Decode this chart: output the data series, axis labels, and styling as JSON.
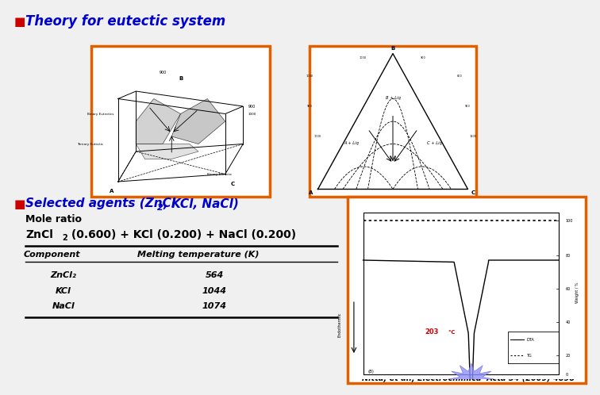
{
  "background_color": "#f0f0f0",
  "title1": "Theory for eutectic system",
  "title1_color": "#0000cc",
  "bullet_color": "#cc0000",
  "title2_color": "#0000cc",
  "mole_ratio_label": "Mole ratio",
  "table_header_col1": "Component",
  "table_header_col2": "Melting temperature (K)",
  "table_rows": [
    [
      "ZnCl₂",
      "564"
    ],
    [
      "KCl",
      "1044"
    ],
    [
      "NaCl",
      "1074"
    ]
  ],
  "citation": "Nitta, et al., Electrochimica  Acta 54 (2009) 4898",
  "orange_border": "#e06000",
  "temp_color": "#cc0000",
  "starburst_color": "#9090ff"
}
